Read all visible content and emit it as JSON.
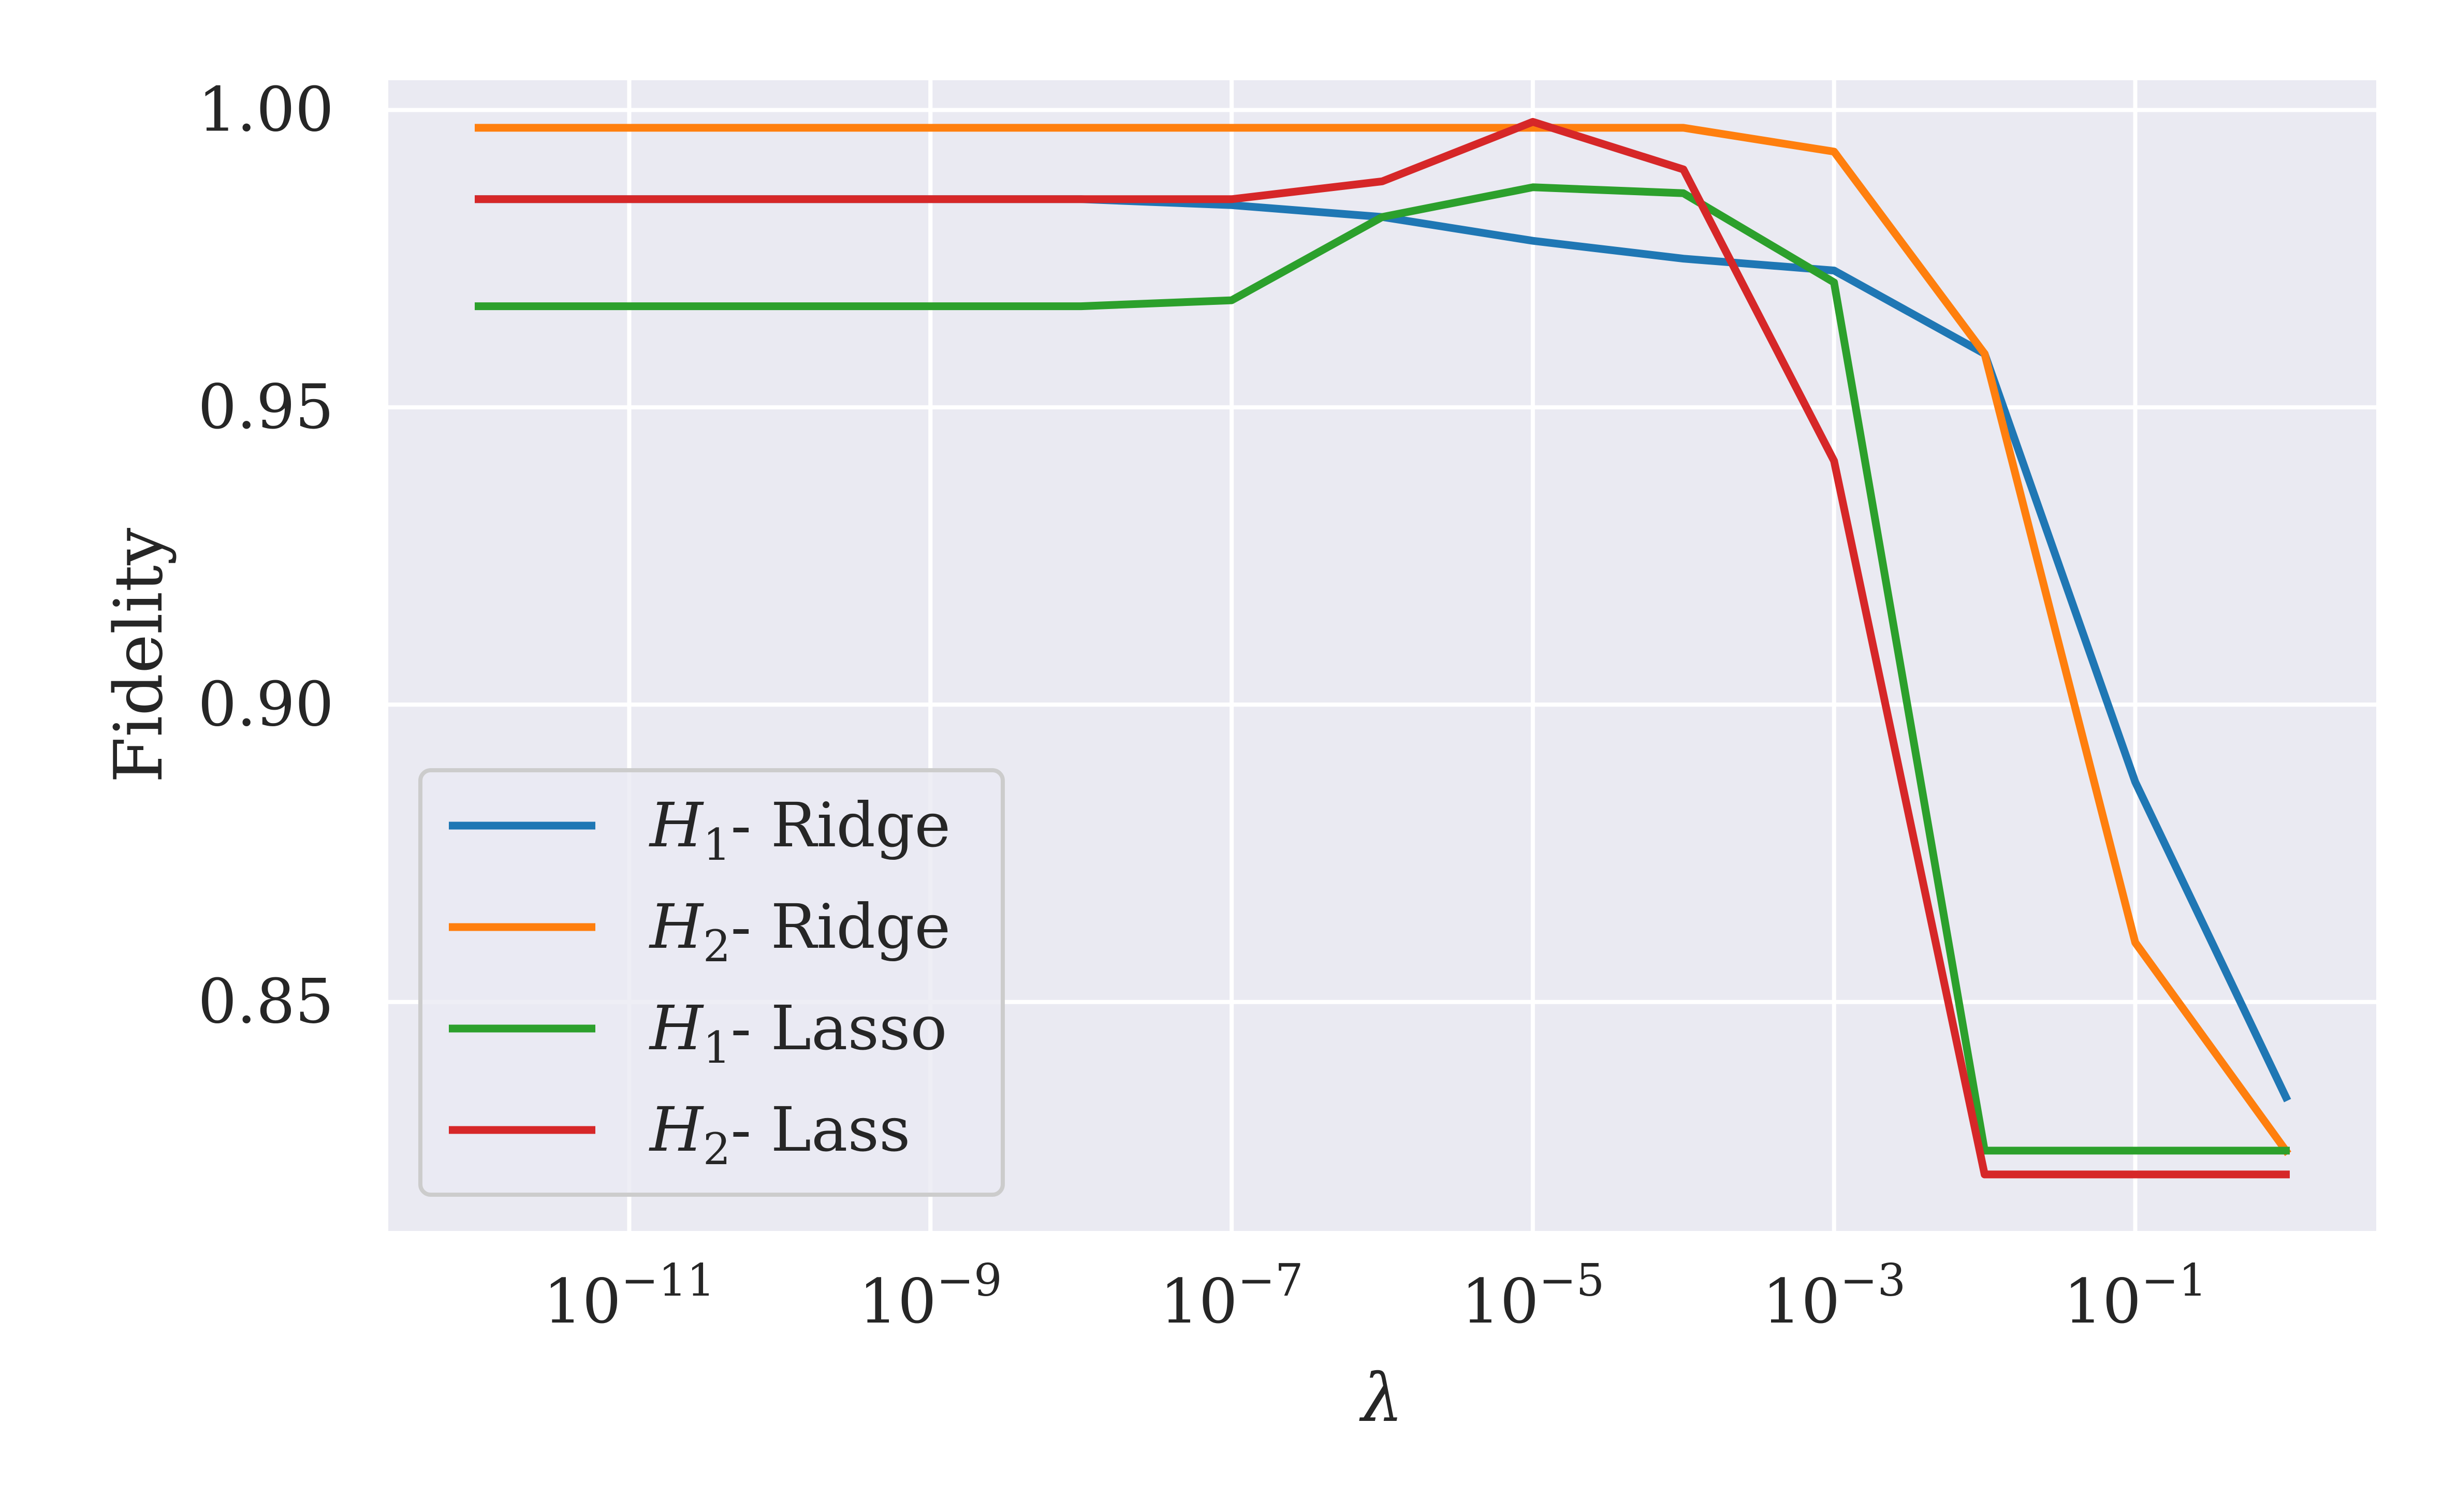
{
  "chart_data": {
    "type": "line",
    "title": "",
    "xlabel": "λ",
    "ylabel": "Fidelity",
    "x_scale": "log10",
    "xlim": [
      1e-12,
      1.0
    ],
    "ylim": [
      0.8115,
      1.005
    ],
    "grid": true,
    "legend_position": "lower-left",
    "x": [
      1e-12,
      1e-11,
      1e-10,
      1e-09,
      1e-08,
      1e-07,
      1e-06,
      1e-05,
      0.0001,
      0.001,
      0.01,
      0.1,
      1
    ],
    "series": [
      {
        "name": "H1- Ridge",
        "color": "#1f77b4",
        "values": [
          0.985,
          0.985,
          0.985,
          0.985,
          0.985,
          0.984,
          0.982,
          0.978,
          0.975,
          0.973,
          0.959,
          0.887,
          0.834
        ]
      },
      {
        "name": "H2- Ridge",
        "color": "#ff7f0e",
        "values": [
          0.997,
          0.997,
          0.997,
          0.997,
          0.997,
          0.997,
          0.997,
          0.997,
          0.997,
          0.993,
          0.959,
          0.86,
          0.825
        ]
      },
      {
        "name": "H1- Lasso",
        "color": "#2ca02c",
        "values": [
          0.967,
          0.967,
          0.967,
          0.967,
          0.967,
          0.968,
          0.982,
          0.987,
          0.986,
          0.971,
          0.825,
          0.825,
          0.825
        ]
      },
      {
        "name": "H2- Lass",
        "color": "#d62728",
        "values": [
          0.985,
          0.985,
          0.985,
          0.985,
          0.985,
          0.985,
          0.988,
          0.998,
          0.99,
          0.941,
          0.821,
          0.821,
          0.821
        ]
      }
    ],
    "x_ticks": [
      {
        "value": 1e-11,
        "base": "10",
        "exp": "−11"
      },
      {
        "value": 1e-09,
        "base": "10",
        "exp": "−9"
      },
      {
        "value": 1e-07,
        "base": "10",
        "exp": "−7"
      },
      {
        "value": 1e-05,
        "base": "10",
        "exp": "−5"
      },
      {
        "value": 0.001,
        "base": "10",
        "exp": "−3"
      },
      {
        "value": 0.1,
        "base": "10",
        "exp": "−1"
      }
    ],
    "y_ticks": [
      {
        "value": 0.85,
        "label": "0.85"
      },
      {
        "value": 0.9,
        "label": "0.90"
      },
      {
        "value": 0.95,
        "label": "0.95"
      },
      {
        "value": 1.0,
        "label": "1.00"
      }
    ],
    "legend_entries": [
      {
        "symbol": "H",
        "sub": "1",
        "suffix": "- Ridge",
        "color": "#1f77b4"
      },
      {
        "symbol": "H",
        "sub": "2",
        "suffix": "- Ridge",
        "color": "#ff7f0e"
      },
      {
        "symbol": "H",
        "sub": "1",
        "suffix": "- Lasso",
        "color": "#2ca02c"
      },
      {
        "symbol": "H",
        "sub": "2",
        "suffix": "- Lass",
        "color": "#d62728"
      }
    ],
    "colors": {
      "plot_background": "#eaeaf2",
      "grid": "#ffffff",
      "text": "#262626",
      "legend_border": "#cccccc"
    }
  }
}
